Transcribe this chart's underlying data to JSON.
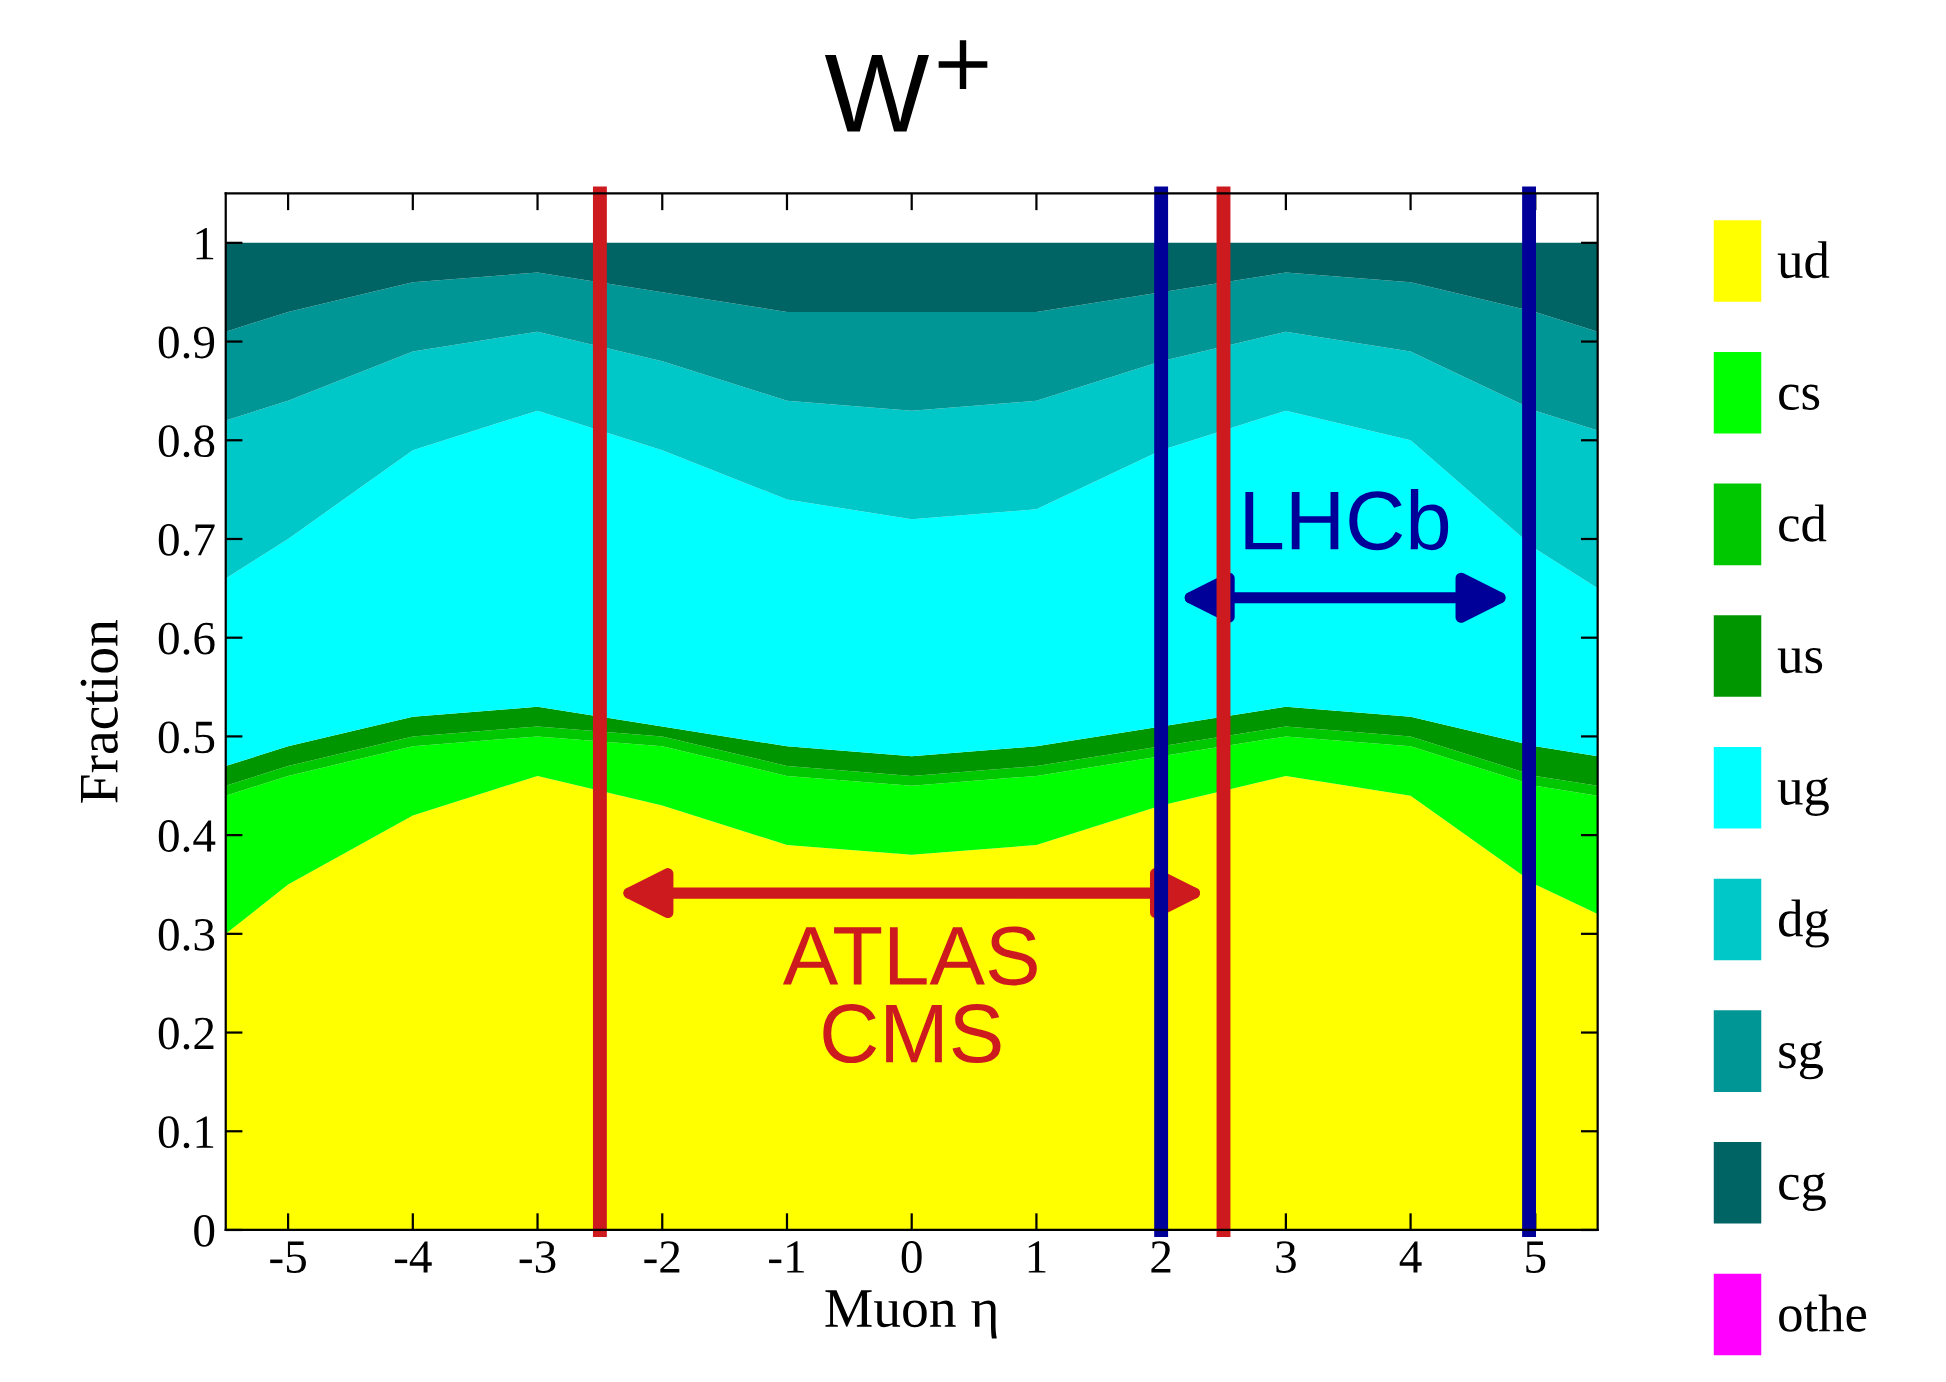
{
  "chart_data": {
    "type": "area",
    "stacked": true,
    "title": "W$^{+}$",
    "xlabel": "Muon η",
    "ylabel": "Fraction",
    "x": [
      -5.5,
      -5,
      -4,
      -3,
      -2,
      -1,
      0,
      1,
      2,
      3,
      4,
      5,
      5.5
    ],
    "series": [
      {
        "name": "ud",
        "color": "#ffff00",
        "values": [
          0.3,
          0.35,
          0.42,
          0.46,
          0.43,
          0.39,
          0.38,
          0.39,
          0.43,
          0.46,
          0.44,
          0.35,
          0.32
        ]
      },
      {
        "name": "cs",
        "color": "#00ff00",
        "values": [
          0.14,
          0.11,
          0.07,
          0.04,
          0.06,
          0.07,
          0.07,
          0.07,
          0.05,
          0.04,
          0.05,
          0.1,
          0.12
        ]
      },
      {
        "name": "cd",
        "color": "#00c800",
        "values": [
          0.01,
          0.01,
          0.01,
          0.01,
          0.01,
          0.01,
          0.01,
          0.01,
          0.01,
          0.01,
          0.01,
          0.01,
          0.01
        ]
      },
      {
        "name": "us",
        "color": "#009600",
        "values": [
          0.02,
          0.02,
          0.02,
          0.02,
          0.01,
          0.02,
          0.02,
          0.02,
          0.02,
          0.02,
          0.02,
          0.03,
          0.03
        ]
      },
      {
        "name": "ug",
        "color": "#00ffff",
        "values": [
          0.19,
          0.21,
          0.27,
          0.3,
          0.28,
          0.25,
          0.24,
          0.24,
          0.28,
          0.3,
          0.28,
          0.2,
          0.17
        ]
      },
      {
        "name": "dg",
        "color": "#00c8c8",
        "values": [
          0.16,
          0.14,
          0.1,
          0.08,
          0.09,
          0.1,
          0.11,
          0.11,
          0.09,
          0.08,
          0.09,
          0.14,
          0.16
        ]
      },
      {
        "name": "sg",
        "color": "#009696",
        "values": [
          0.09,
          0.09,
          0.07,
          0.06,
          0.07,
          0.09,
          0.1,
          0.09,
          0.07,
          0.06,
          0.07,
          0.1,
          0.1
        ]
      },
      {
        "name": "cg",
        "color": "#006464",
        "values": [
          0.09,
          0.07,
          0.04,
          0.03,
          0.05,
          0.07,
          0.07,
          0.07,
          0.05,
          0.03,
          0.04,
          0.07,
          0.09
        ]
      },
      {
        "name": "othe",
        "color": "#ff00ff",
        "values": [
          null,
          null,
          null,
          null,
          null,
          null,
          null,
          null,
          null,
          null,
          null,
          null,
          null
        ]
      }
    ],
    "xlim": [
      -5.5,
      5.5
    ],
    "xticks": [
      -5,
      -4,
      -3,
      -2,
      -1,
      0,
      1,
      2,
      3,
      4,
      5
    ],
    "ylim": [
      0,
      1.05
    ],
    "yticks": [
      0,
      0.1,
      0.2,
      0.3,
      0.4,
      0.5,
      0.6,
      0.7,
      0.8,
      0.9,
      1
    ],
    "ref_lines": [
      {
        "axis": "x",
        "value": -2.5,
        "color": "#cc1a1f"
      },
      {
        "axis": "x",
        "value": 2.5,
        "color": "#cc1a1f"
      },
      {
        "axis": "x",
        "value": 2,
        "color": "#000099"
      },
      {
        "axis": "x",
        "value": 4.95,
        "color": "#000099"
      }
    ],
    "annotations": [
      "ATLAS\nCMS",
      "LHCb"
    ],
    "legend": "right",
    "grid": false
  }
}
